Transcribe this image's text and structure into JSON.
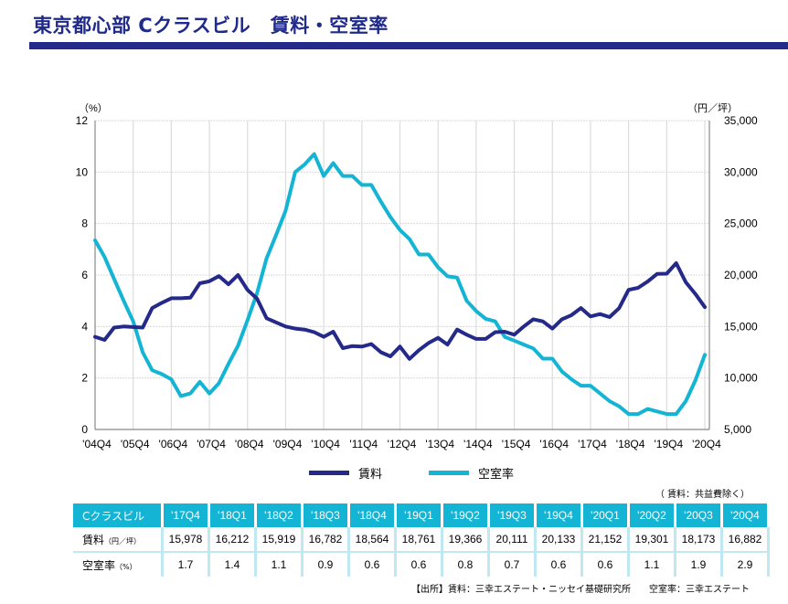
{
  "header": {
    "title": "東京都心部 Cクラスビル　賃料・空室率"
  },
  "chart_data": {
    "type": "line",
    "title": "東京都心部 Cクラスビル 賃料・空室率",
    "left_axis": {
      "unit_label": "（%）",
      "ticks": [
        "0",
        "2",
        "4",
        "6",
        "8",
        "10",
        "12"
      ],
      "range": [
        0,
        12
      ]
    },
    "right_axis": {
      "unit_label": "（円／坪）",
      "ticks": [
        "5,000",
        "10,000",
        "15,000",
        "20,000",
        "25,000",
        "30,000",
        "35,000"
      ],
      "range": [
        5000,
        35000
      ]
    },
    "x_tick_labels": [
      "'04Q4",
      "'05Q4",
      "'06Q4",
      "'07Q4",
      "'08Q4",
      "'09Q4",
      "'10Q4",
      "'11Q4",
      "'12Q4",
      "'13Q4",
      "'14Q4",
      "'15Q4",
      "'16Q4",
      "'17Q4",
      "'18Q4",
      "'19Q4",
      "'20Q4"
    ],
    "x_start": "2004Q4",
    "x_end": "2020Q4",
    "frequency": "quarterly",
    "grid": true,
    "legend_position": "bottom",
    "series": [
      {
        "name": "賃料",
        "axis": "right",
        "color": "#24298a",
        "values": [
          14000,
          13700,
          14900,
          15000,
          14950,
          14900,
          16800,
          17300,
          17750,
          17750,
          17800,
          19200,
          19400,
          19900,
          19100,
          20000,
          18550,
          17700,
          15800,
          15400,
          15000,
          14800,
          14700,
          14450,
          14000,
          14500,
          12900,
          13100,
          13050,
          13300,
          12500,
          12100,
          13050,
          11850,
          12700,
          13400,
          13900,
          13250,
          14700,
          14200,
          13800,
          13800,
          14450,
          14500,
          14200,
          15000,
          15700,
          15500,
          14800,
          15700,
          16100,
          16800,
          15978,
          16212,
          15919,
          16782,
          18564,
          18761,
          19366,
          20111,
          20133,
          21152,
          19301,
          18173,
          16882
        ]
      },
      {
        "name": "空室率",
        "axis": "left",
        "color": "#14b4d4",
        "values": [
          7.35,
          6.7,
          5.85,
          5.0,
          4.2,
          3.0,
          2.3,
          2.15,
          1.95,
          1.3,
          1.4,
          1.85,
          1.4,
          1.8,
          2.55,
          3.25,
          4.25,
          5.3,
          6.65,
          7.55,
          8.5,
          10.0,
          10.3,
          10.7,
          9.85,
          10.35,
          9.85,
          9.85,
          9.5,
          9.5,
          8.85,
          8.25,
          7.75,
          7.4,
          6.8,
          6.8,
          6.3,
          5.95,
          5.9,
          5.0,
          4.6,
          4.3,
          4.2,
          3.6,
          3.45,
          3.3,
          3.15,
          2.75,
          2.75,
          2.25,
          1.95,
          1.7,
          1.7,
          1.4,
          1.1,
          0.9,
          0.6,
          0.6,
          0.8,
          0.7,
          0.6,
          0.6,
          1.1,
          1.9,
          2.9
        ]
      }
    ]
  },
  "legend": {
    "items": [
      {
        "label": "賃料",
        "color": "#24298a"
      },
      {
        "label": "空室率",
        "color": "#14b4d4"
      }
    ]
  },
  "table": {
    "note": "（ 賃料：共益費除く）",
    "corner_label": "Cクラスビル",
    "columns": [
      "'17Q4",
      "'18Q1",
      "'18Q2",
      "'18Q3",
      "'18Q4",
      "'19Q1",
      "'19Q2",
      "'19Q3",
      "'19Q4",
      "'20Q1",
      "'20Q2",
      "'20Q3",
      "'20Q4"
    ],
    "rows": [
      {
        "label": "賃料",
        "unit": "（円／坪）",
        "values": [
          "15,978",
          "16,212",
          "15,919",
          "16,782",
          "18,564",
          "18,761",
          "19,366",
          "20,111",
          "20,133",
          "21,152",
          "19,301",
          "18,173",
          "16,882"
        ]
      },
      {
        "label": "空室率",
        "unit": "（%）",
        "values": [
          "1.7",
          "1.4",
          "1.1",
          "0.9",
          "0.6",
          "0.6",
          "0.8",
          "0.7",
          "0.6",
          "0.6",
          "1.1",
          "1.9",
          "2.9"
        ]
      }
    ],
    "source": "【出所】賃料：三幸エステート・ニッセイ基礎研究所　　空室率：三幸エステート"
  }
}
